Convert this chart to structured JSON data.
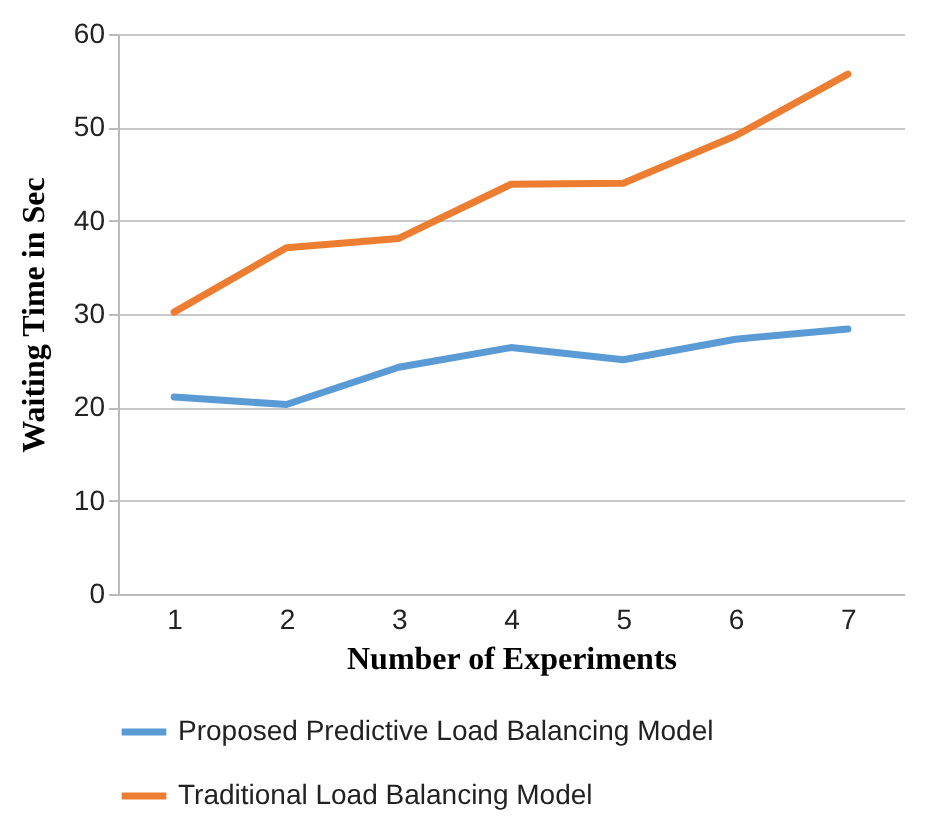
{
  "chart_data": {
    "type": "line",
    "xlabel": "Number of Experiments",
    "ylabel": "Waiting Time in Sec",
    "categories": [
      "1",
      "2",
      "3",
      "4",
      "5",
      "6",
      "7"
    ],
    "series": [
      {
        "name": "Proposed Predictive Load Balancing Model",
        "color": "#5b9bd5",
        "values": [
          21.1,
          20.3,
          24.3,
          26.4,
          25.1,
          27.3,
          28.4
        ]
      },
      {
        "name": "Traditional Load Balancing Model",
        "color": "#ed7d31",
        "values": [
          30.2,
          37.1,
          38.1,
          43.9,
          44.0,
          49.1,
          55.7
        ]
      }
    ],
    "ylim": [
      0,
      60
    ],
    "yticks": [
      0,
      10,
      20,
      30,
      40,
      50,
      60
    ],
    "grid": "y",
    "legend": "bottom",
    "marker": "none",
    "line_style": "solid"
  }
}
